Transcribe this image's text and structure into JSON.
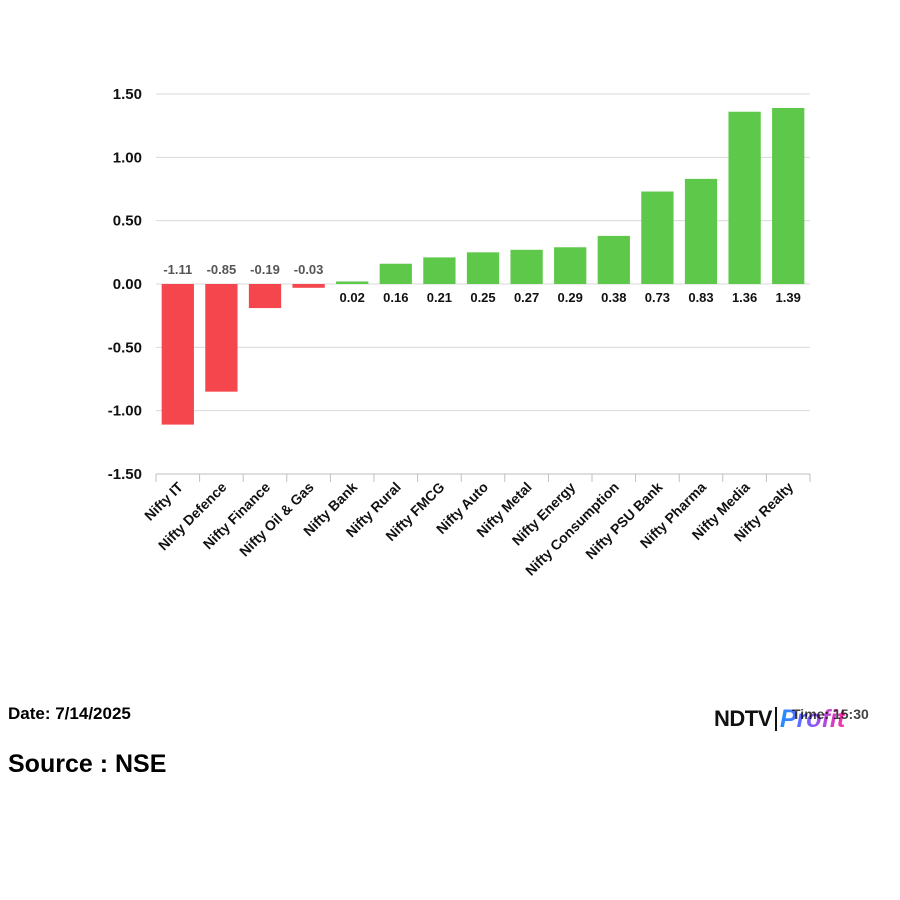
{
  "chart_data": {
    "type": "bar",
    "title": "",
    "xlabel": "",
    "ylabel": "",
    "categories": [
      "Nifty IT",
      "Nifty Defence",
      "Nifty Finance",
      "Nifty Oil & Gas",
      "Nifty Bank",
      "Nifty Rural",
      "Nifty FMCG",
      "Nifty Auto",
      "Nifty Metal",
      "Nifty Energy",
      "Nifty Consumption",
      "Nifty PSU Bank",
      "Nifty Pharma",
      "Nifty Media",
      "Nifty Realty"
    ],
    "values": [
      -1.11,
      -0.85,
      -0.19,
      -0.03,
      0.02,
      0.16,
      0.21,
      0.25,
      0.27,
      0.29,
      0.38,
      0.73,
      0.83,
      1.36,
      1.39
    ],
    "value_labels": [
      "-1.11",
      "-0.85",
      "-0.19",
      "-0.03",
      "0.02",
      "0.16",
      "0.21",
      "0.25",
      "0.27",
      "0.29",
      "0.38",
      "0.73",
      "0.83",
      "1.36",
      "1.39"
    ],
    "ylim": [
      -1.5,
      1.5
    ],
    "yticks": [
      "1.50",
      "1.00",
      "0.50",
      "0.00",
      "-0.50",
      "-1.00",
      "-1.50"
    ],
    "ytick_values": [
      1.5,
      1.0,
      0.5,
      0.0,
      -0.5,
      -1.0,
      -1.5
    ],
    "grid": true,
    "legend": "none",
    "colors": {
      "positive": "#5dc84a",
      "negative": "#f4464c",
      "negative_label": "#555555",
      "positive_label": "#111111"
    }
  },
  "footer": {
    "date": "Date: 7/14/2025",
    "source": "Source : NSE"
  },
  "logo": {
    "brand": "NDTV",
    "product": "Profit",
    "time_text": "Time: 15:30"
  }
}
